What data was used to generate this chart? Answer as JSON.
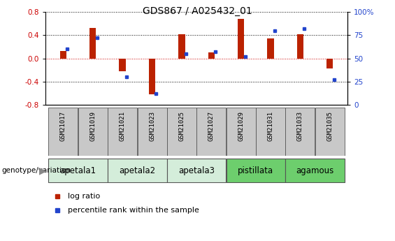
{
  "title": "GDS867 / A025432_01",
  "samples": [
    "GSM21017",
    "GSM21019",
    "GSM21021",
    "GSM21023",
    "GSM21025",
    "GSM21027",
    "GSM21029",
    "GSM21031",
    "GSM21033",
    "GSM21035"
  ],
  "log_ratio": [
    0.13,
    0.52,
    -0.22,
    -0.62,
    0.42,
    0.1,
    0.68,
    0.35,
    0.42,
    -0.17
  ],
  "percentile_rank": [
    60,
    72,
    30,
    12,
    55,
    57,
    52,
    80,
    82,
    27
  ],
  "groups": [
    {
      "label": "apetala1",
      "indices": [
        0,
        1
      ],
      "color": "#d4edda"
    },
    {
      "label": "apetala2",
      "indices": [
        2,
        3
      ],
      "color": "#d4edda"
    },
    {
      "label": "apetala3",
      "indices": [
        4,
        5
      ],
      "color": "#d4edda"
    },
    {
      "label": "pistillata",
      "indices": [
        6,
        7
      ],
      "color": "#6dce6d"
    },
    {
      "label": "agamous",
      "indices": [
        8,
        9
      ],
      "color": "#6dce6d"
    }
  ],
  "ylim_left": [
    -0.8,
    0.8
  ],
  "ylim_right": [
    0,
    100
  ],
  "yticks_left": [
    -0.8,
    -0.4,
    0.0,
    0.4,
    0.8
  ],
  "yticks_right": [
    0,
    25,
    50,
    75,
    100
  ],
  "bar_color_red": "#bb2200",
  "bar_color_blue": "#2244cc",
  "hline_red_color": "#cc0000",
  "hline_black_color": "#000000",
  "legend_log_ratio": "log ratio",
  "legend_percentile": "percentile rank within the sample",
  "bar_width": 0.4,
  "title_fontsize": 10,
  "tick_fontsize": 7.5,
  "group_fontsize": 8,
  "sample_gray": "#c8c8c8",
  "border_color": "#555555"
}
